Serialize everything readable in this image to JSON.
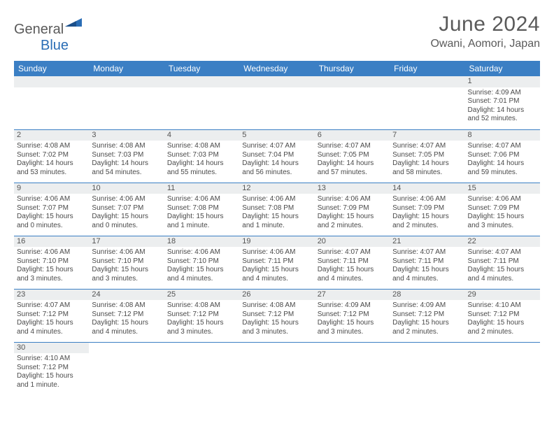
{
  "logo": {
    "text1": "General",
    "text2": "Blue"
  },
  "title": "June 2024",
  "location": "Owani, Aomori, Japan",
  "colors": {
    "header_bg": "#3b7fc4",
    "header_text": "#ffffff",
    "daynum_bg": "#eceeef",
    "border": "#3b7fc4",
    "text": "#4a4a4a",
    "title_text": "#5a5a5a",
    "logo_blue": "#2a6db5"
  },
  "day_headers": [
    "Sunday",
    "Monday",
    "Tuesday",
    "Wednesday",
    "Thursday",
    "Friday",
    "Saturday"
  ],
  "weeks": [
    [
      null,
      null,
      null,
      null,
      null,
      null,
      {
        "n": "1",
        "sr": "Sunrise: 4:09 AM",
        "ss": "Sunset: 7:01 PM",
        "dl": "Daylight: 14 hours and 52 minutes."
      }
    ],
    [
      {
        "n": "2",
        "sr": "Sunrise: 4:08 AM",
        "ss": "Sunset: 7:02 PM",
        "dl": "Daylight: 14 hours and 53 minutes."
      },
      {
        "n": "3",
        "sr": "Sunrise: 4:08 AM",
        "ss": "Sunset: 7:03 PM",
        "dl": "Daylight: 14 hours and 54 minutes."
      },
      {
        "n": "4",
        "sr": "Sunrise: 4:08 AM",
        "ss": "Sunset: 7:03 PM",
        "dl": "Daylight: 14 hours and 55 minutes."
      },
      {
        "n": "5",
        "sr": "Sunrise: 4:07 AM",
        "ss": "Sunset: 7:04 PM",
        "dl": "Daylight: 14 hours and 56 minutes."
      },
      {
        "n": "6",
        "sr": "Sunrise: 4:07 AM",
        "ss": "Sunset: 7:05 PM",
        "dl": "Daylight: 14 hours and 57 minutes."
      },
      {
        "n": "7",
        "sr": "Sunrise: 4:07 AM",
        "ss": "Sunset: 7:05 PM",
        "dl": "Daylight: 14 hours and 58 minutes."
      },
      {
        "n": "8",
        "sr": "Sunrise: 4:07 AM",
        "ss": "Sunset: 7:06 PM",
        "dl": "Daylight: 14 hours and 59 minutes."
      }
    ],
    [
      {
        "n": "9",
        "sr": "Sunrise: 4:06 AM",
        "ss": "Sunset: 7:07 PM",
        "dl": "Daylight: 15 hours and 0 minutes."
      },
      {
        "n": "10",
        "sr": "Sunrise: 4:06 AM",
        "ss": "Sunset: 7:07 PM",
        "dl": "Daylight: 15 hours and 0 minutes."
      },
      {
        "n": "11",
        "sr": "Sunrise: 4:06 AM",
        "ss": "Sunset: 7:08 PM",
        "dl": "Daylight: 15 hours and 1 minute."
      },
      {
        "n": "12",
        "sr": "Sunrise: 4:06 AM",
        "ss": "Sunset: 7:08 PM",
        "dl": "Daylight: 15 hours and 1 minute."
      },
      {
        "n": "13",
        "sr": "Sunrise: 4:06 AM",
        "ss": "Sunset: 7:09 PM",
        "dl": "Daylight: 15 hours and 2 minutes."
      },
      {
        "n": "14",
        "sr": "Sunrise: 4:06 AM",
        "ss": "Sunset: 7:09 PM",
        "dl": "Daylight: 15 hours and 2 minutes."
      },
      {
        "n": "15",
        "sr": "Sunrise: 4:06 AM",
        "ss": "Sunset: 7:09 PM",
        "dl": "Daylight: 15 hours and 3 minutes."
      }
    ],
    [
      {
        "n": "16",
        "sr": "Sunrise: 4:06 AM",
        "ss": "Sunset: 7:10 PM",
        "dl": "Daylight: 15 hours and 3 minutes."
      },
      {
        "n": "17",
        "sr": "Sunrise: 4:06 AM",
        "ss": "Sunset: 7:10 PM",
        "dl": "Daylight: 15 hours and 3 minutes."
      },
      {
        "n": "18",
        "sr": "Sunrise: 4:06 AM",
        "ss": "Sunset: 7:10 PM",
        "dl": "Daylight: 15 hours and 4 minutes."
      },
      {
        "n": "19",
        "sr": "Sunrise: 4:06 AM",
        "ss": "Sunset: 7:11 PM",
        "dl": "Daylight: 15 hours and 4 minutes."
      },
      {
        "n": "20",
        "sr": "Sunrise: 4:07 AM",
        "ss": "Sunset: 7:11 PM",
        "dl": "Daylight: 15 hours and 4 minutes."
      },
      {
        "n": "21",
        "sr": "Sunrise: 4:07 AM",
        "ss": "Sunset: 7:11 PM",
        "dl": "Daylight: 15 hours and 4 minutes."
      },
      {
        "n": "22",
        "sr": "Sunrise: 4:07 AM",
        "ss": "Sunset: 7:11 PM",
        "dl": "Daylight: 15 hours and 4 minutes."
      }
    ],
    [
      {
        "n": "23",
        "sr": "Sunrise: 4:07 AM",
        "ss": "Sunset: 7:12 PM",
        "dl": "Daylight: 15 hours and 4 minutes."
      },
      {
        "n": "24",
        "sr": "Sunrise: 4:08 AM",
        "ss": "Sunset: 7:12 PM",
        "dl": "Daylight: 15 hours and 4 minutes."
      },
      {
        "n": "25",
        "sr": "Sunrise: 4:08 AM",
        "ss": "Sunset: 7:12 PM",
        "dl": "Daylight: 15 hours and 3 minutes."
      },
      {
        "n": "26",
        "sr": "Sunrise: 4:08 AM",
        "ss": "Sunset: 7:12 PM",
        "dl": "Daylight: 15 hours and 3 minutes."
      },
      {
        "n": "27",
        "sr": "Sunrise: 4:09 AM",
        "ss": "Sunset: 7:12 PM",
        "dl": "Daylight: 15 hours and 3 minutes."
      },
      {
        "n": "28",
        "sr": "Sunrise: 4:09 AM",
        "ss": "Sunset: 7:12 PM",
        "dl": "Daylight: 15 hours and 2 minutes."
      },
      {
        "n": "29",
        "sr": "Sunrise: 4:10 AM",
        "ss": "Sunset: 7:12 PM",
        "dl": "Daylight: 15 hours and 2 minutes."
      }
    ],
    [
      {
        "n": "30",
        "sr": "Sunrise: 4:10 AM",
        "ss": "Sunset: 7:12 PM",
        "dl": "Daylight: 15 hours and 1 minute."
      },
      null,
      null,
      null,
      null,
      null,
      null
    ]
  ]
}
